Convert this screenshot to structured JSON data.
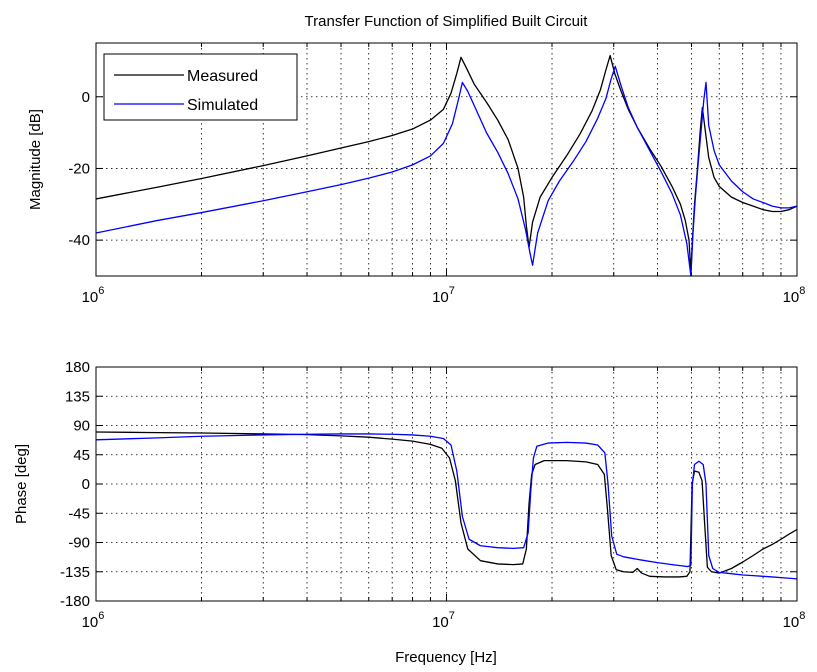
{
  "chart_data": [
    {
      "type": "line",
      "title": "Transfer Function of Simplified Built Circuit",
      "xlabel": "",
      "ylabel": "Magnitude [dB]",
      "xscale": "log",
      "xlim": [
        1000000,
        100000000
      ],
      "ylim": [
        -50,
        15
      ],
      "xticks": [
        1000000,
        10000000,
        100000000
      ],
      "xtick_labels": [
        {
          "base": "10",
          "exp": "6"
        },
        {
          "base": "10",
          "exp": "7"
        },
        {
          "base": "10",
          "exp": "8"
        }
      ],
      "yticks": [
        -40,
        -20,
        0
      ],
      "ytick_labels": [
        "-40",
        "-20",
        "0"
      ],
      "grid": true,
      "legend": {
        "position": "top-left",
        "entries": [
          "Measured",
          "Simulated"
        ]
      },
      "series": [
        {
          "name": "Measured",
          "color": "#000000",
          "x": [
            1000000,
            1500000,
            2000000,
            3000000,
            4000000,
            5000000,
            6000000,
            7000000,
            8000000,
            9000000,
            9800000,
            10300000,
            10700000,
            11000000,
            11400000,
            12000000,
            13000000,
            14000000,
            15000000,
            16000000,
            16600000,
            16900000,
            17200000,
            17600000,
            18500000,
            20000000,
            22000000,
            24000000,
            26000000,
            27500000,
            28500000,
            29300000,
            30200000,
            31500000,
            33000000,
            35000000,
            38000000,
            41000000,
            44000000,
            46500000,
            48000000,
            49200000,
            49800000,
            50300000,
            51000000,
            52000000,
            53000000,
            53700000,
            54500000,
            56000000,
            58000000,
            60000000,
            65000000,
            70000000,
            75000000,
            80000000,
            85000000,
            90000000,
            95000000,
            100000000
          ],
          "y": [
            -28.5,
            -25.2,
            -22.8,
            -19.2,
            -16.5,
            -14.3,
            -12.5,
            -10.8,
            -9.0,
            -6.5,
            -3.5,
            1.0,
            6.5,
            11.0,
            8.0,
            3.5,
            -1.5,
            -6.5,
            -12.0,
            -20.0,
            -28.0,
            -36.0,
            -42.0,
            -35.0,
            -28.0,
            -22.5,
            -16.5,
            -10.5,
            -4.0,
            2.0,
            7.5,
            11.5,
            6.5,
            1.5,
            -3.5,
            -8.5,
            -14.5,
            -19.5,
            -25.0,
            -30.0,
            -34.5,
            -40.0,
            -49.0,
            -40.0,
            -30.0,
            -20.0,
            -9.0,
            -3.0,
            -8.0,
            -17.0,
            -22.5,
            -25.0,
            -28.0,
            -29.5,
            -30.5,
            -31.5,
            -32.0,
            -32.0,
            -31.5,
            -30.5
          ]
        },
        {
          "name": "Simulated",
          "color": "#0000ff",
          "x": [
            1000000,
            1500000,
            2000000,
            3000000,
            4000000,
            5000000,
            6000000,
            7000000,
            8000000,
            9000000,
            9800000,
            10400000,
            10800000,
            11100000,
            11500000,
            12200000,
            13000000,
            14000000,
            15000000,
            16000000,
            16800000,
            17300000,
            17600000,
            18200000,
            19500000,
            21000000,
            23000000,
            25000000,
            27000000,
            28500000,
            29500000,
            30300000,
            31500000,
            33000000,
            35000000,
            38000000,
            41000000,
            44000000,
            46500000,
            48500000,
            49800000,
            50500000,
            51300000,
            52200000,
            53200000,
            54200000,
            55000000,
            56000000,
            58000000,
            60000000,
            65000000,
            70000000,
            75000000,
            80000000,
            85000000,
            90000000,
            95000000,
            100000000
          ],
          "y": [
            -38.0,
            -34.5,
            -32.3,
            -29.0,
            -26.5,
            -24.5,
            -22.7,
            -21.0,
            -19.0,
            -16.5,
            -13.0,
            -7.5,
            -1.0,
            4.0,
            1.5,
            -4.0,
            -10.0,
            -15.5,
            -21.5,
            -28.5,
            -37.0,
            -43.5,
            -47.0,
            -38.0,
            -29.0,
            -23.5,
            -18.0,
            -12.5,
            -6.0,
            -0.5,
            5.0,
            8.5,
            3.0,
            -3.0,
            -8.5,
            -15.0,
            -21.0,
            -27.0,
            -33.0,
            -41.0,
            -50.0,
            -38.0,
            -28.0,
            -19.0,
            -10.0,
            -1.0,
            4.0,
            -8.0,
            -15.0,
            -19.0,
            -23.5,
            -26.5,
            -28.5,
            -29.5,
            -30.5,
            -31.0,
            -31.0,
            -30.5
          ]
        }
      ]
    },
    {
      "type": "line",
      "title": "",
      "xlabel": "Frequency [Hz]",
      "ylabel": "Phase [deg]",
      "xscale": "log",
      "xlim": [
        1000000,
        100000000
      ],
      "ylim": [
        -180,
        180
      ],
      "xticks": [
        1000000,
        10000000,
        100000000
      ],
      "xtick_labels": [
        {
          "base": "10",
          "exp": "6"
        },
        {
          "base": "10",
          "exp": "7"
        },
        {
          "base": "10",
          "exp": "8"
        }
      ],
      "yticks": [
        -180,
        -135,
        -90,
        -45,
        0,
        45,
        90,
        135,
        180
      ],
      "ytick_labels": [
        "-180",
        "-135",
        "-90",
        "-45",
        "0",
        "45",
        "90",
        "135",
        "180"
      ],
      "grid": true,
      "series": [
        {
          "name": "Measured",
          "color": "#000000",
          "x": [
            1000000,
            1500000,
            2000000,
            3000000,
            4000000,
            5000000,
            6000000,
            7000000,
            8000000,
            9000000,
            9700000,
            10200000,
            10600000,
            11000000,
            11500000,
            12500000,
            14000000,
            15500000,
            16500000,
            16900000,
            17200000,
            17500000,
            17900000,
            19000000,
            22000000,
            25000000,
            27000000,
            28200000,
            28800000,
            29500000,
            30500000,
            32000000,
            34000000,
            35000000,
            36000000,
            38000000,
            42000000,
            46000000,
            48500000,
            49500000,
            50200000,
            51000000,
            52500000,
            53600000,
            54500000,
            55500000,
            57000000,
            60000000,
            65000000,
            70000000,
            75000000,
            80000000,
            85000000,
            90000000,
            95000000,
            100000000
          ],
          "y": [
            80,
            79,
            78.5,
            77,
            76,
            74,
            72,
            69,
            66,
            61,
            55,
            40,
            5,
            -60,
            -100,
            -118,
            -123,
            -124,
            -123,
            -100,
            -30,
            15,
            30,
            36,
            36,
            34,
            30,
            15,
            -40,
            -110,
            -132,
            -135,
            -136,
            -130,
            -137,
            -142,
            -143,
            -143,
            -142,
            -135,
            0,
            20,
            18,
            5,
            -60,
            -128,
            -135,
            -137,
            -130,
            -120,
            -110,
            -100,
            -93,
            -85,
            -77,
            -70
          ]
        },
        {
          "name": "Simulated",
          "color": "#0000ff",
          "x": [
            1000000,
            1500000,
            2000000,
            3000000,
            4000000,
            5000000,
            6000000,
            7000000,
            8000000,
            9000000,
            9800000,
            10300000,
            10700000,
            11100000,
            11600000,
            12500000,
            14000000,
            15500000,
            16600000,
            17100000,
            17400000,
            17700000,
            18100000,
            19500000,
            22000000,
            25000000,
            27000000,
            28300000,
            28900000,
            29600000,
            30600000,
            32000000,
            36000000,
            40000000,
            44000000,
            47000000,
            48800000,
            49800000,
            50300000,
            51000000,
            52500000,
            54000000,
            55000000,
            56000000,
            57500000,
            60000000,
            65000000,
            70000000,
            75000000,
            80000000,
            85000000,
            90000000,
            95000000,
            100000000
          ],
          "y": [
            68,
            71,
            73.5,
            75.5,
            76.5,
            77,
            77,
            76.5,
            75.5,
            73.5,
            70,
            60,
            20,
            -50,
            -85,
            -95,
            -98,
            -99,
            -98,
            -75,
            -10,
            40,
            58,
            63,
            64,
            63,
            60,
            48,
            0,
            -80,
            -108,
            -112,
            -117,
            -121,
            -124,
            -126,
            -127,
            -125,
            0,
            30,
            35,
            30,
            0,
            -110,
            -130,
            -136,
            -138,
            -140,
            -141,
            -142,
            -143,
            -144,
            -145,
            -146
          ]
        }
      ]
    }
  ]
}
